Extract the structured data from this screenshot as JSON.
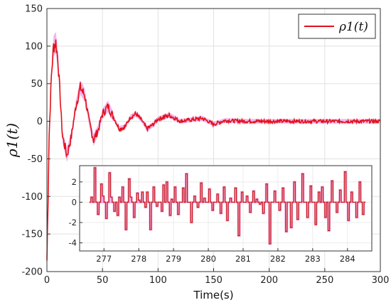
{
  "chart_data": {
    "type": "line",
    "xlabel": "Time(s)",
    "ylabel": "ρ1(t)",
    "xlim": [
      0,
      300
    ],
    "ylim": [
      -200,
      150
    ],
    "x_ticks": [
      0,
      50,
      100,
      150,
      200,
      250,
      300
    ],
    "y_ticks": [
      -200,
      -150,
      -100,
      -50,
      0,
      50,
      100,
      150
    ],
    "grid": true,
    "legend_position": "top-right",
    "series": [
      {
        "name": "ρ1(t)",
        "color": "#e3101a",
        "band_color": "#f2a7e6",
        "x": [
          0,
          2,
          4,
          6,
          8,
          10,
          14,
          18,
          22,
          26,
          30,
          34,
          38,
          42,
          46,
          50,
          55,
          60,
          65,
          70,
          75,
          80,
          85,
          90,
          95,
          100,
          110,
          120,
          130,
          140,
          150,
          160,
          180,
          200,
          220,
          250,
          280,
          300
        ],
        "y": [
          -185,
          -20,
          60,
          100,
          105,
          80,
          -20,
          -45,
          -20,
          20,
          45,
          35,
          0,
          -25,
          -12,
          10,
          20,
          5,
          -10,
          -8,
          5,
          10,
          2,
          -10,
          -5,
          3,
          8,
          0,
          2,
          4,
          -4,
          1,
          0,
          0,
          0,
          0,
          0,
          0
        ]
      }
    ],
    "inset": {
      "type": "line",
      "xlim": [
        276.3,
        284.7
      ],
      "ylim": [
        -4.8,
        3.6
      ],
      "x_ticks": [
        277,
        278,
        279,
        280,
        281,
        282,
        283,
        284
      ],
      "y_ticks": [
        -4,
        -2,
        0,
        2
      ],
      "values": [
        0,
        0.5,
        0,
        3.4,
        0,
        -1.2,
        0,
        1.8,
        0.6,
        0,
        -1.6,
        0,
        2.9,
        0.5,
        0,
        -0.9,
        0,
        -1.3,
        0.5,
        0,
        1.5,
        0,
        -2.7,
        0,
        2.3,
        0.5,
        0,
        -1.5,
        0,
        0.9,
        0.2,
        0,
        1.0,
        0,
        -0.5,
        1.0,
        0,
        -2.7,
        0,
        1.5,
        0,
        -0.4,
        0,
        0,
        -0.9,
        1.7,
        0,
        2.0,
        0,
        -1.3,
        0.3,
        0,
        1.5,
        0,
        -1.2,
        0,
        0,
        1.4,
        0,
        2.8,
        0,
        0,
        -2.0,
        0,
        0.6,
        0,
        -0.5,
        0,
        1.9,
        0,
        0.4,
        0,
        0,
        1.3,
        0,
        -0.8,
        0,
        0,
        0.8,
        0,
        -1.1,
        0,
        1.5,
        0,
        -1.8,
        0,
        0.4,
        0,
        0,
        1.4,
        0,
        -3.3,
        0,
        1.0,
        0,
        0,
        0.6,
        0,
        -1.0,
        0,
        1.1,
        0,
        0.3,
        0,
        -0.2,
        0,
        -1.1,
        0,
        1.8,
        0,
        -4.1,
        0,
        0,
        1.1,
        0,
        0,
        -0.8,
        0,
        1.4,
        0,
        -2.9,
        0,
        0,
        -2.5,
        0,
        2.0,
        0,
        -1.7,
        0,
        0,
        2.8,
        0,
        0,
        -1.5,
        0,
        1.6,
        0,
        0,
        -2.2,
        0,
        1.0,
        0,
        1.5,
        0,
        -1.5,
        0,
        -2.8,
        0,
        2.1,
        0,
        0,
        -1.0,
        0,
        1.2,
        0,
        0,
        3.0,
        0,
        -1.8,
        0,
        1.0,
        0,
        0,
        -1.5,
        0,
        2.0,
        0,
        -1.2,
        0
      ]
    }
  }
}
